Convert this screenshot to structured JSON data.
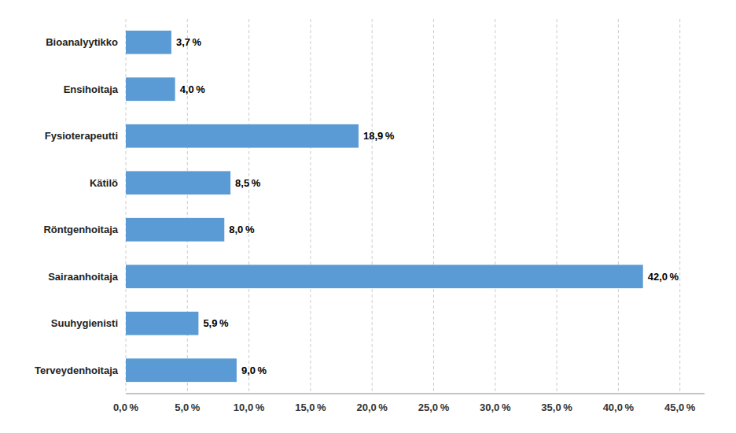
{
  "chart_data": {
    "type": "bar",
    "orientation": "horizontal",
    "categories": [
      "Terveydenhoitaja",
      "Suuhygienisti",
      "Sairaanhoitaja",
      "Röntgenhoitaja",
      "Kätilö",
      "Fysioterapeutti",
      "Ensihoitaja",
      "Bioanalyytikko"
    ],
    "values": [
      9.0,
      5.9,
      42.0,
      8.0,
      8.5,
      18.9,
      4.0,
      3.7
    ],
    "value_labels": [
      "9,0 %",
      "5,9 %",
      "42,0 %",
      "8,0 %",
      "8,5 %",
      "18,9 %",
      "4,0 %",
      "3,7 %"
    ],
    "data_labels": true,
    "color": "#5B9BD5",
    "xlim": [
      0,
      47
    ],
    "xticks": [
      {
        "value": 0,
        "label": "0,0 %"
      },
      {
        "value": 5,
        "label": "5,0 %"
      },
      {
        "value": 10,
        "label": "10,0 %"
      },
      {
        "value": 15,
        "label": "15,0 %"
      },
      {
        "value": 20,
        "label": "20,0 %"
      },
      {
        "value": 25,
        "label": "25,0 %"
      },
      {
        "value": 30,
        "label": "30,0 %"
      },
      {
        "value": 35,
        "label": "35,0 %"
      },
      {
        "value": 40,
        "label": "40,0 %"
      },
      {
        "value": 45,
        "label": "45,0 %"
      }
    ],
    "grid": true
  }
}
